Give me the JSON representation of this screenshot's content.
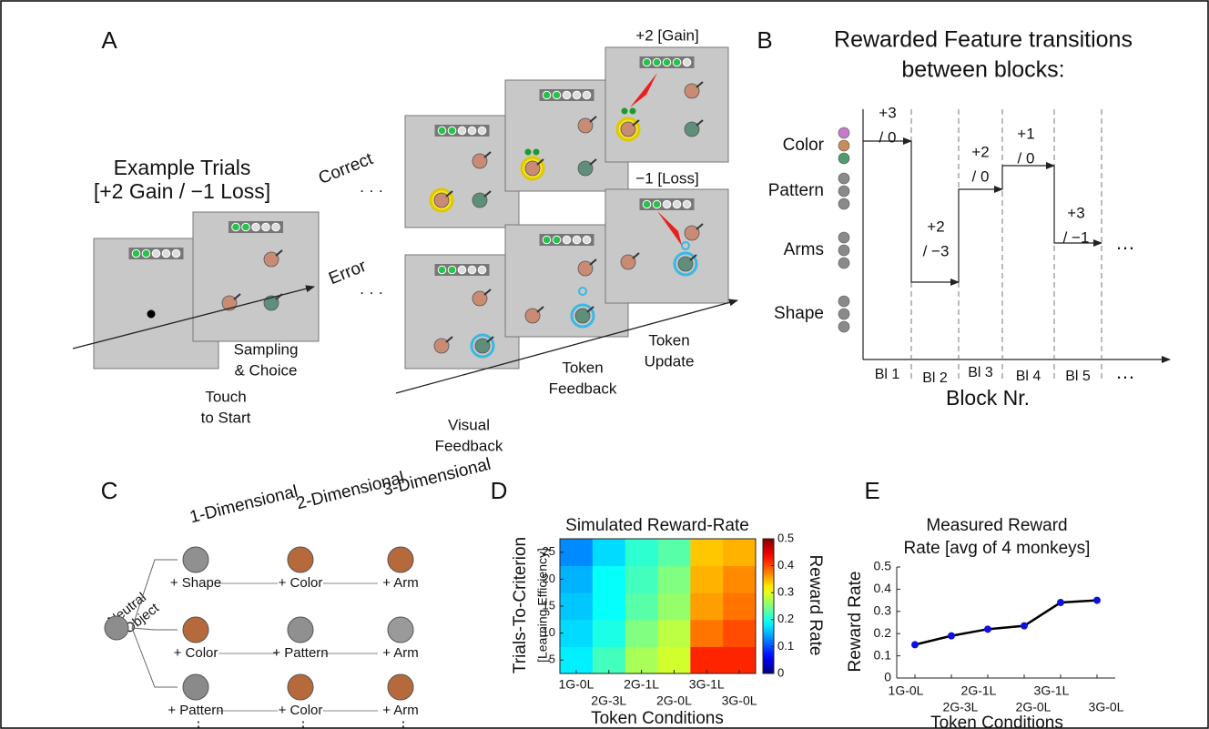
{
  "figure": {
    "panel_a": {
      "label": "A",
      "title": "Example Trials",
      "subtitle": "[+2 Gain / −1 Loss]",
      "correct": "Correct",
      "error": "Error",
      "ellipsis": "· · ·",
      "gain": "+2 [Gain]",
      "loss": "−1 [Loss]",
      "steps": [
        [
          "Touch",
          "to Start"
        ],
        [
          "Sampling",
          "& Choice"
        ],
        [
          "Visual",
          "Feedback"
        ],
        [
          "Token",
          "Feedback"
        ],
        [
          "Token",
          "Update"
        ]
      ]
    },
    "panel_b": {
      "label": "B",
      "title": [
        "Rewarded Feature transitions",
        "between blocks:"
      ],
      "features": [
        "Color",
        "Pattern",
        "Arms",
        "Shape"
      ],
      "transitions": [
        [
          "+3",
          "/ 0"
        ],
        [
          "+2",
          "/ −3"
        ],
        [
          "+2",
          "/ 0"
        ],
        [
          "+1",
          "/ 0"
        ],
        [
          "+3",
          "/ −1"
        ]
      ],
      "blocks": [
        "Bl 1",
        "Bl 2",
        "Bl 3",
        "Bl 4",
        "Bl 5"
      ],
      "xlabel": "Block Nr.",
      "ellipsis": "…"
    },
    "panel_c": {
      "label": "C",
      "neutral": [
        "Neutral",
        "Object"
      ],
      "headers": [
        "1-Dimensional",
        "2-Dimensional",
        "3-Dimensional"
      ],
      "rows": [
        [
          "+ Shape",
          "+ Color",
          "+ Arm"
        ],
        [
          "+ Color",
          "+ Pattern",
          "+ Arm"
        ],
        [
          "+ Pattern",
          "+ Color",
          "+ Arm"
        ]
      ],
      "vdots": "⋮"
    }
  },
  "chart_data": [
    {
      "type": "heatmap",
      "panel": "D",
      "title": "Simulated Reward-Rate",
      "ylabel": [
        "Trials-To-Criterion",
        "[Learning Efficiency]"
      ],
      "xlabel": "Token Conditions",
      "categories": [
        "1G-0L",
        "2G-3L",
        "2G-1L",
        "2G-0L",
        "3G-1L",
        "3G-0L"
      ],
      "y": [
        5,
        10,
        15,
        20,
        25
      ],
      "ylim": [
        2.5,
        27.5
      ],
      "yticks": [
        5,
        10,
        15,
        20,
        25
      ],
      "values": [
        [
          0.18,
          0.22,
          0.27,
          0.29,
          0.42,
          0.42
        ],
        [
          0.17,
          0.2,
          0.25,
          0.28,
          0.38,
          0.4
        ],
        [
          0.16,
          0.19,
          0.23,
          0.26,
          0.36,
          0.38
        ],
        [
          0.15,
          0.19,
          0.22,
          0.25,
          0.35,
          0.37
        ],
        [
          0.13,
          0.17,
          0.21,
          0.23,
          0.34,
          0.35
        ]
      ],
      "colormap": "jet",
      "zlim": [
        0,
        0.5
      ],
      "zticks": [
        0,
        0.1,
        0.2,
        0.3,
        0.4,
        0.5
      ],
      "colorbar_label": "Reward Rate"
    },
    {
      "type": "line",
      "panel": "E",
      "title": [
        "Measured Reward",
        "Rate [avg of 4 monkeys]"
      ],
      "ylabel": "Reward Rate",
      "xlabel": "Token Conditions",
      "categories": [
        "1G-0L",
        "2G-3L",
        "2G-1L",
        "2G-0L",
        "3G-1L",
        "3G-0L"
      ],
      "values": [
        0.15,
        0.19,
        0.22,
        0.235,
        0.34,
        0.35
      ],
      "color": "#1010e0",
      "line_color": "#000000",
      "ylim": [
        0,
        0.5
      ],
      "yticks": [
        0,
        0.1,
        0.2,
        0.3,
        0.4,
        0.5
      ]
    }
  ]
}
